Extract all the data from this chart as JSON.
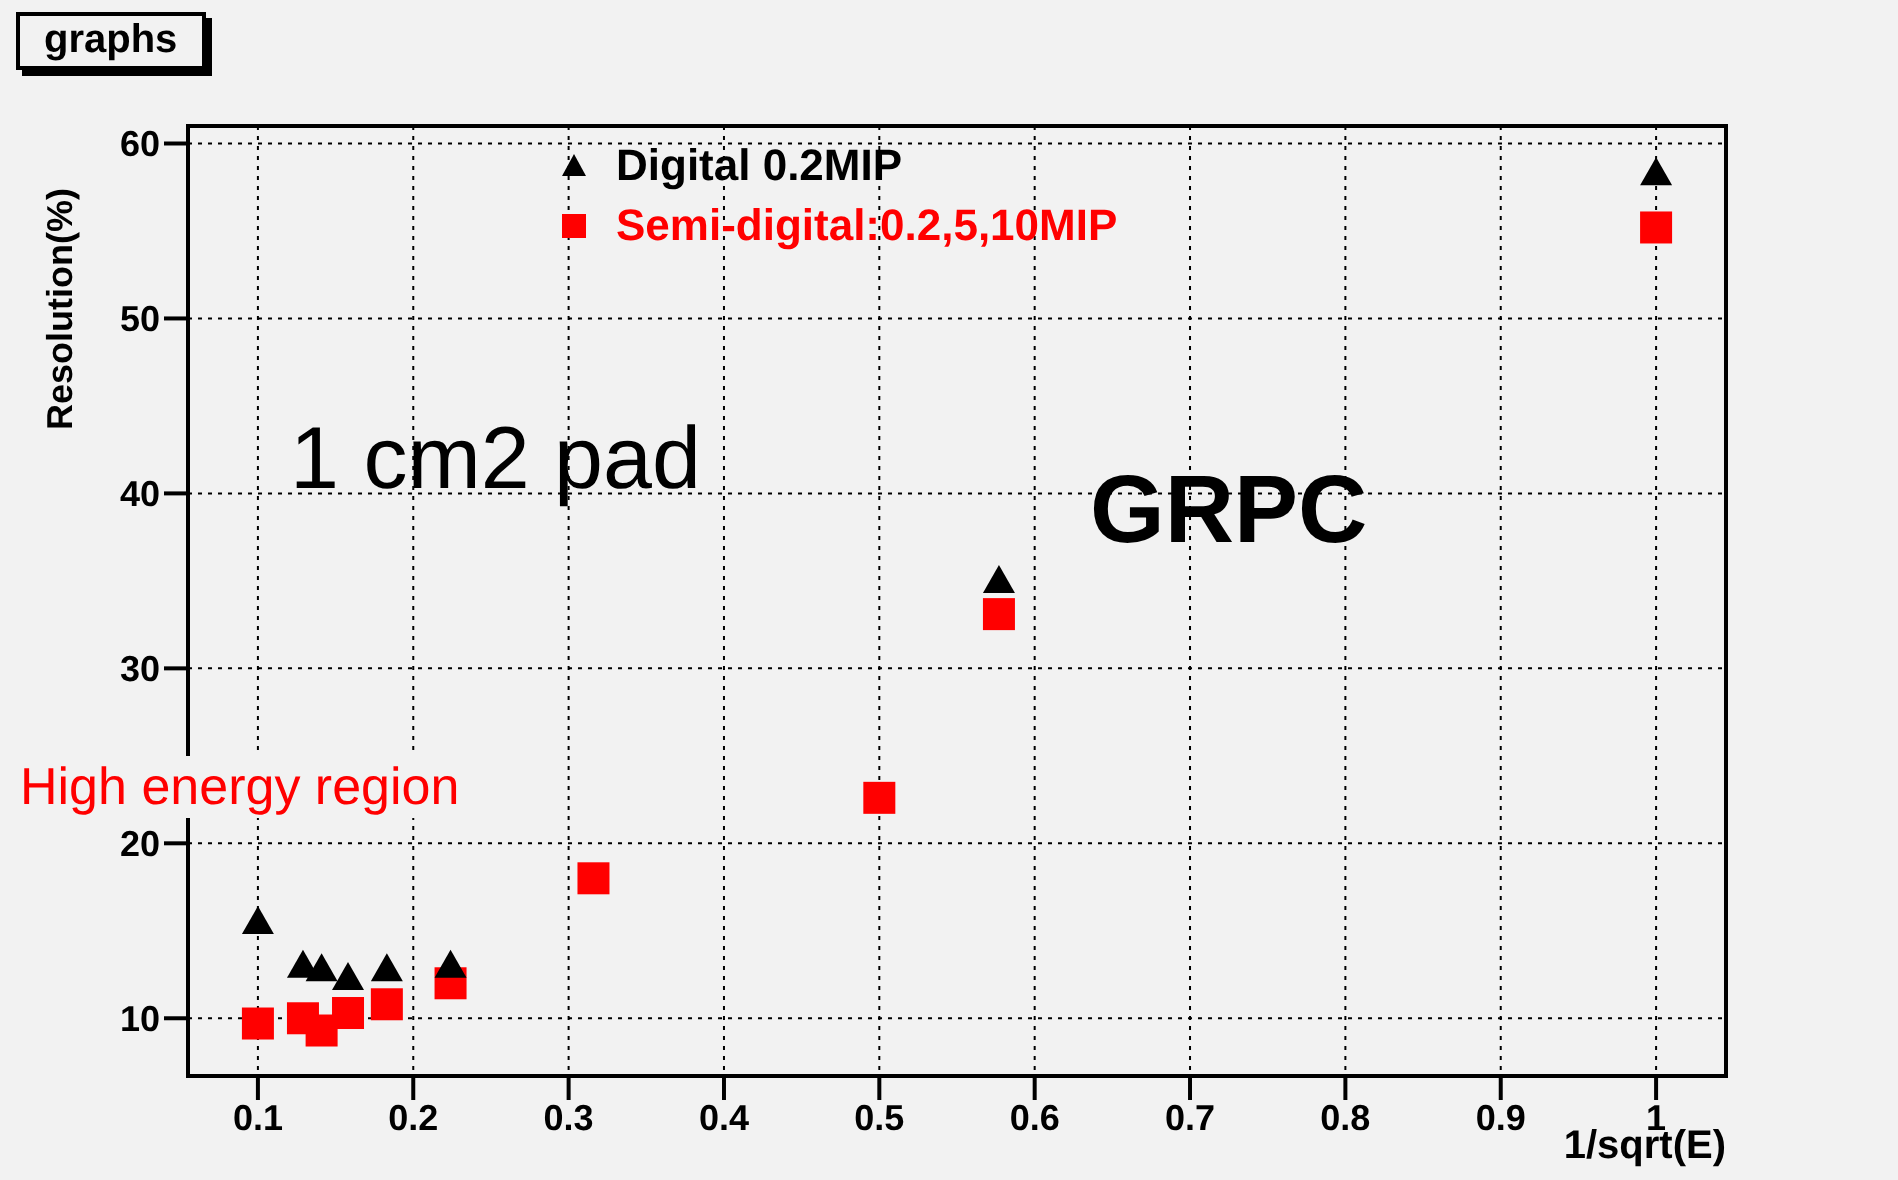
{
  "chart_data": {
    "type": "scatter",
    "title": "graphs",
    "xlabel": "1/sqrt(E)",
    "ylabel": "Resolution(%)",
    "x": [
      0.1,
      0.129,
      0.141,
      0.158,
      0.183,
      0.224,
      0.316,
      0.5,
      0.577,
      1
    ],
    "series": [
      {
        "name": "Digital 0.2MIP",
        "color": "#000000",
        "marker": "triangle",
        "values": [
          15.5,
          13.0,
          12.8,
          12.3,
          12.8,
          13.0,
          null,
          null,
          35.0,
          58.3
        ]
      },
      {
        "name": "Semi-digital:0.2,5,10MIP",
        "color": "#ff0000",
        "marker": "square",
        "values": [
          9.7,
          10.0,
          9.3,
          10.3,
          10.8,
          12.0,
          18.0,
          22.6,
          33.1,
          55.2
        ]
      }
    ],
    "xlim": [
      0.055,
      1.045
    ],
    "xticks": [
      0.1,
      0.2,
      0.3,
      0.4,
      0.5,
      0.6,
      0.7,
      0.8,
      0.9,
      1
    ],
    "ylim": [
      6.7,
      61
    ],
    "yticks": [
      10,
      20,
      30,
      40,
      50,
      60
    ],
    "grid": true,
    "legend": "top",
    "annotations": [
      "1 cm2 pad",
      "GRPC",
      "High energy region"
    ]
  }
}
